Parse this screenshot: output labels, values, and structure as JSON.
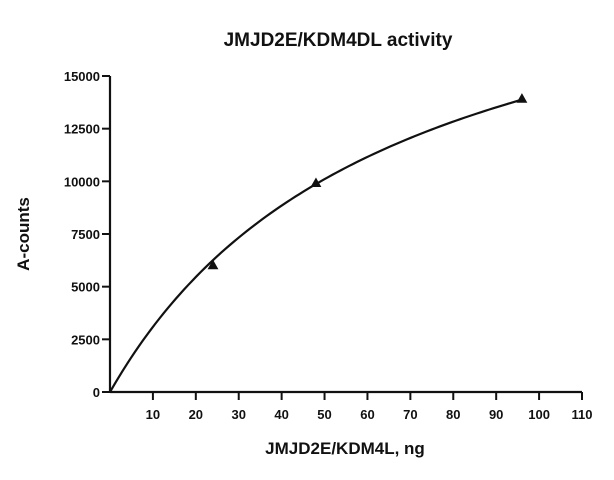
{
  "chart_data": {
    "type": "scatter",
    "title": "JMJD2E/KDM4DL activity",
    "xlabel": "JMJD2E/KDM4L, ng",
    "ylabel": "A-counts",
    "xlim": [
      0,
      110
    ],
    "ylim": [
      0,
      15000
    ],
    "x_ticks": [
      10,
      20,
      30,
      40,
      50,
      60,
      70,
      80,
      90,
      100,
      110
    ],
    "y_ticks": [
      0,
      2500,
      5000,
      7500,
      10000,
      12500,
      15000
    ],
    "grid": false,
    "legend": "none",
    "series": [
      {
        "marker": "triangle",
        "x": [
          24,
          48,
          96
        ],
        "y": [
          6000,
          9900,
          13900
        ],
        "fit": {
          "model": "hyperbolic",
          "vmax": 23360,
          "km": 65.6
        }
      }
    ],
    "colors": {
      "axis": "#111111",
      "series": "#111111"
    }
  }
}
